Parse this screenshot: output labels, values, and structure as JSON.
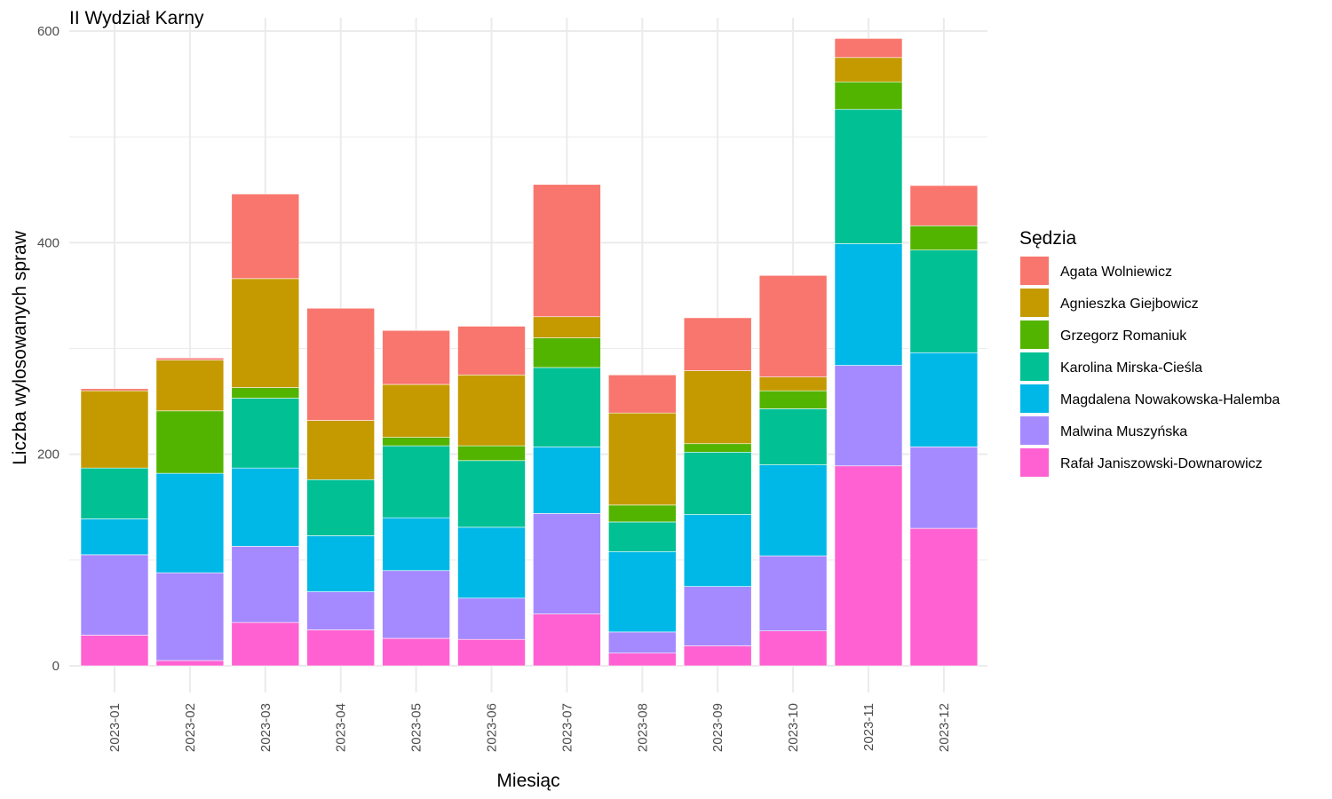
{
  "chart_data": {
    "type": "bar",
    "stacked": true,
    "title": "II Wydział Karny",
    "xlabel": "Miesiąc",
    "ylabel": "Liczba wylosowanych spraw",
    "ylim": [
      0,
      600
    ],
    "yticks": [
      0,
      200,
      400,
      600
    ],
    "grid": true,
    "legend_title": "Sędzia",
    "legend_position": "right",
    "categories": [
      "2023-01",
      "2023-02",
      "2023-03",
      "2023-04",
      "2023-05",
      "2023-06",
      "2023-07",
      "2023-08",
      "2023-09",
      "2023-10",
      "2023-11",
      "2023-12"
    ],
    "series": [
      {
        "name": "Rafał Janiszowski-Downarowicz",
        "color": "#FF61D2",
        "values": [
          29,
          5,
          41,
          34,
          26,
          25,
          49,
          12,
          19,
          33,
          189,
          130
        ]
      },
      {
        "name": "Malwina Muszyńska",
        "color": "#A58AFF",
        "values": [
          76,
          83,
          72,
          36,
          64,
          39,
          95,
          20,
          56,
          71,
          95,
          77
        ]
      },
      {
        "name": "Magdalena Nowakowska-Halemba",
        "color": "#00B8E7",
        "values": [
          34,
          94,
          74,
          53,
          50,
          67,
          63,
          76,
          68,
          86,
          115,
          89
        ]
      },
      {
        "name": "Karolina Mirska-Cieśla",
        "color": "#00C094",
        "values": [
          48,
          0,
          66,
          53,
          68,
          63,
          75,
          28,
          59,
          53,
          127,
          97
        ]
      },
      {
        "name": "Grzegorz Romaniuk",
        "color": "#53B400",
        "values": [
          0,
          59,
          10,
          0,
          8,
          14,
          28,
          16,
          8,
          17,
          26,
          23
        ]
      },
      {
        "name": "Agnieszka Giejbowicz",
        "color": "#C49A00",
        "values": [
          73,
          48,
          103,
          56,
          50,
          67,
          20,
          87,
          69,
          13,
          23,
          0
        ]
      },
      {
        "name": "Agata Wolniewicz",
        "color": "#F8766D",
        "values": [
          2,
          2,
          80,
          106,
          51,
          46,
          125,
          36,
          50,
          96,
          18,
          38
        ]
      }
    ]
  }
}
